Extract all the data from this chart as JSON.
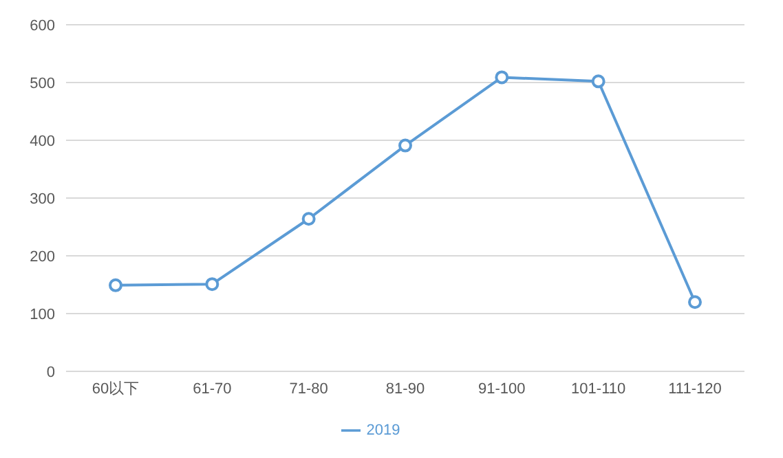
{
  "chart_data": {
    "type": "line",
    "categories": [
      "60以下",
      "61-70",
      "71-80",
      "81-90",
      "91-100",
      "101-110",
      "111-120"
    ],
    "series": [
      {
        "name": "2019",
        "color": "#5b9bd5",
        "values": [
          149,
          151,
          264,
          391,
          509,
          502,
          120
        ]
      }
    ],
    "ylim": [
      0,
      600
    ],
    "yticks": [
      0,
      100,
      200,
      300,
      400,
      500,
      600
    ],
    "grid": "y",
    "legend": "bottom",
    "marker": "circle",
    "line_style": "solid"
  }
}
